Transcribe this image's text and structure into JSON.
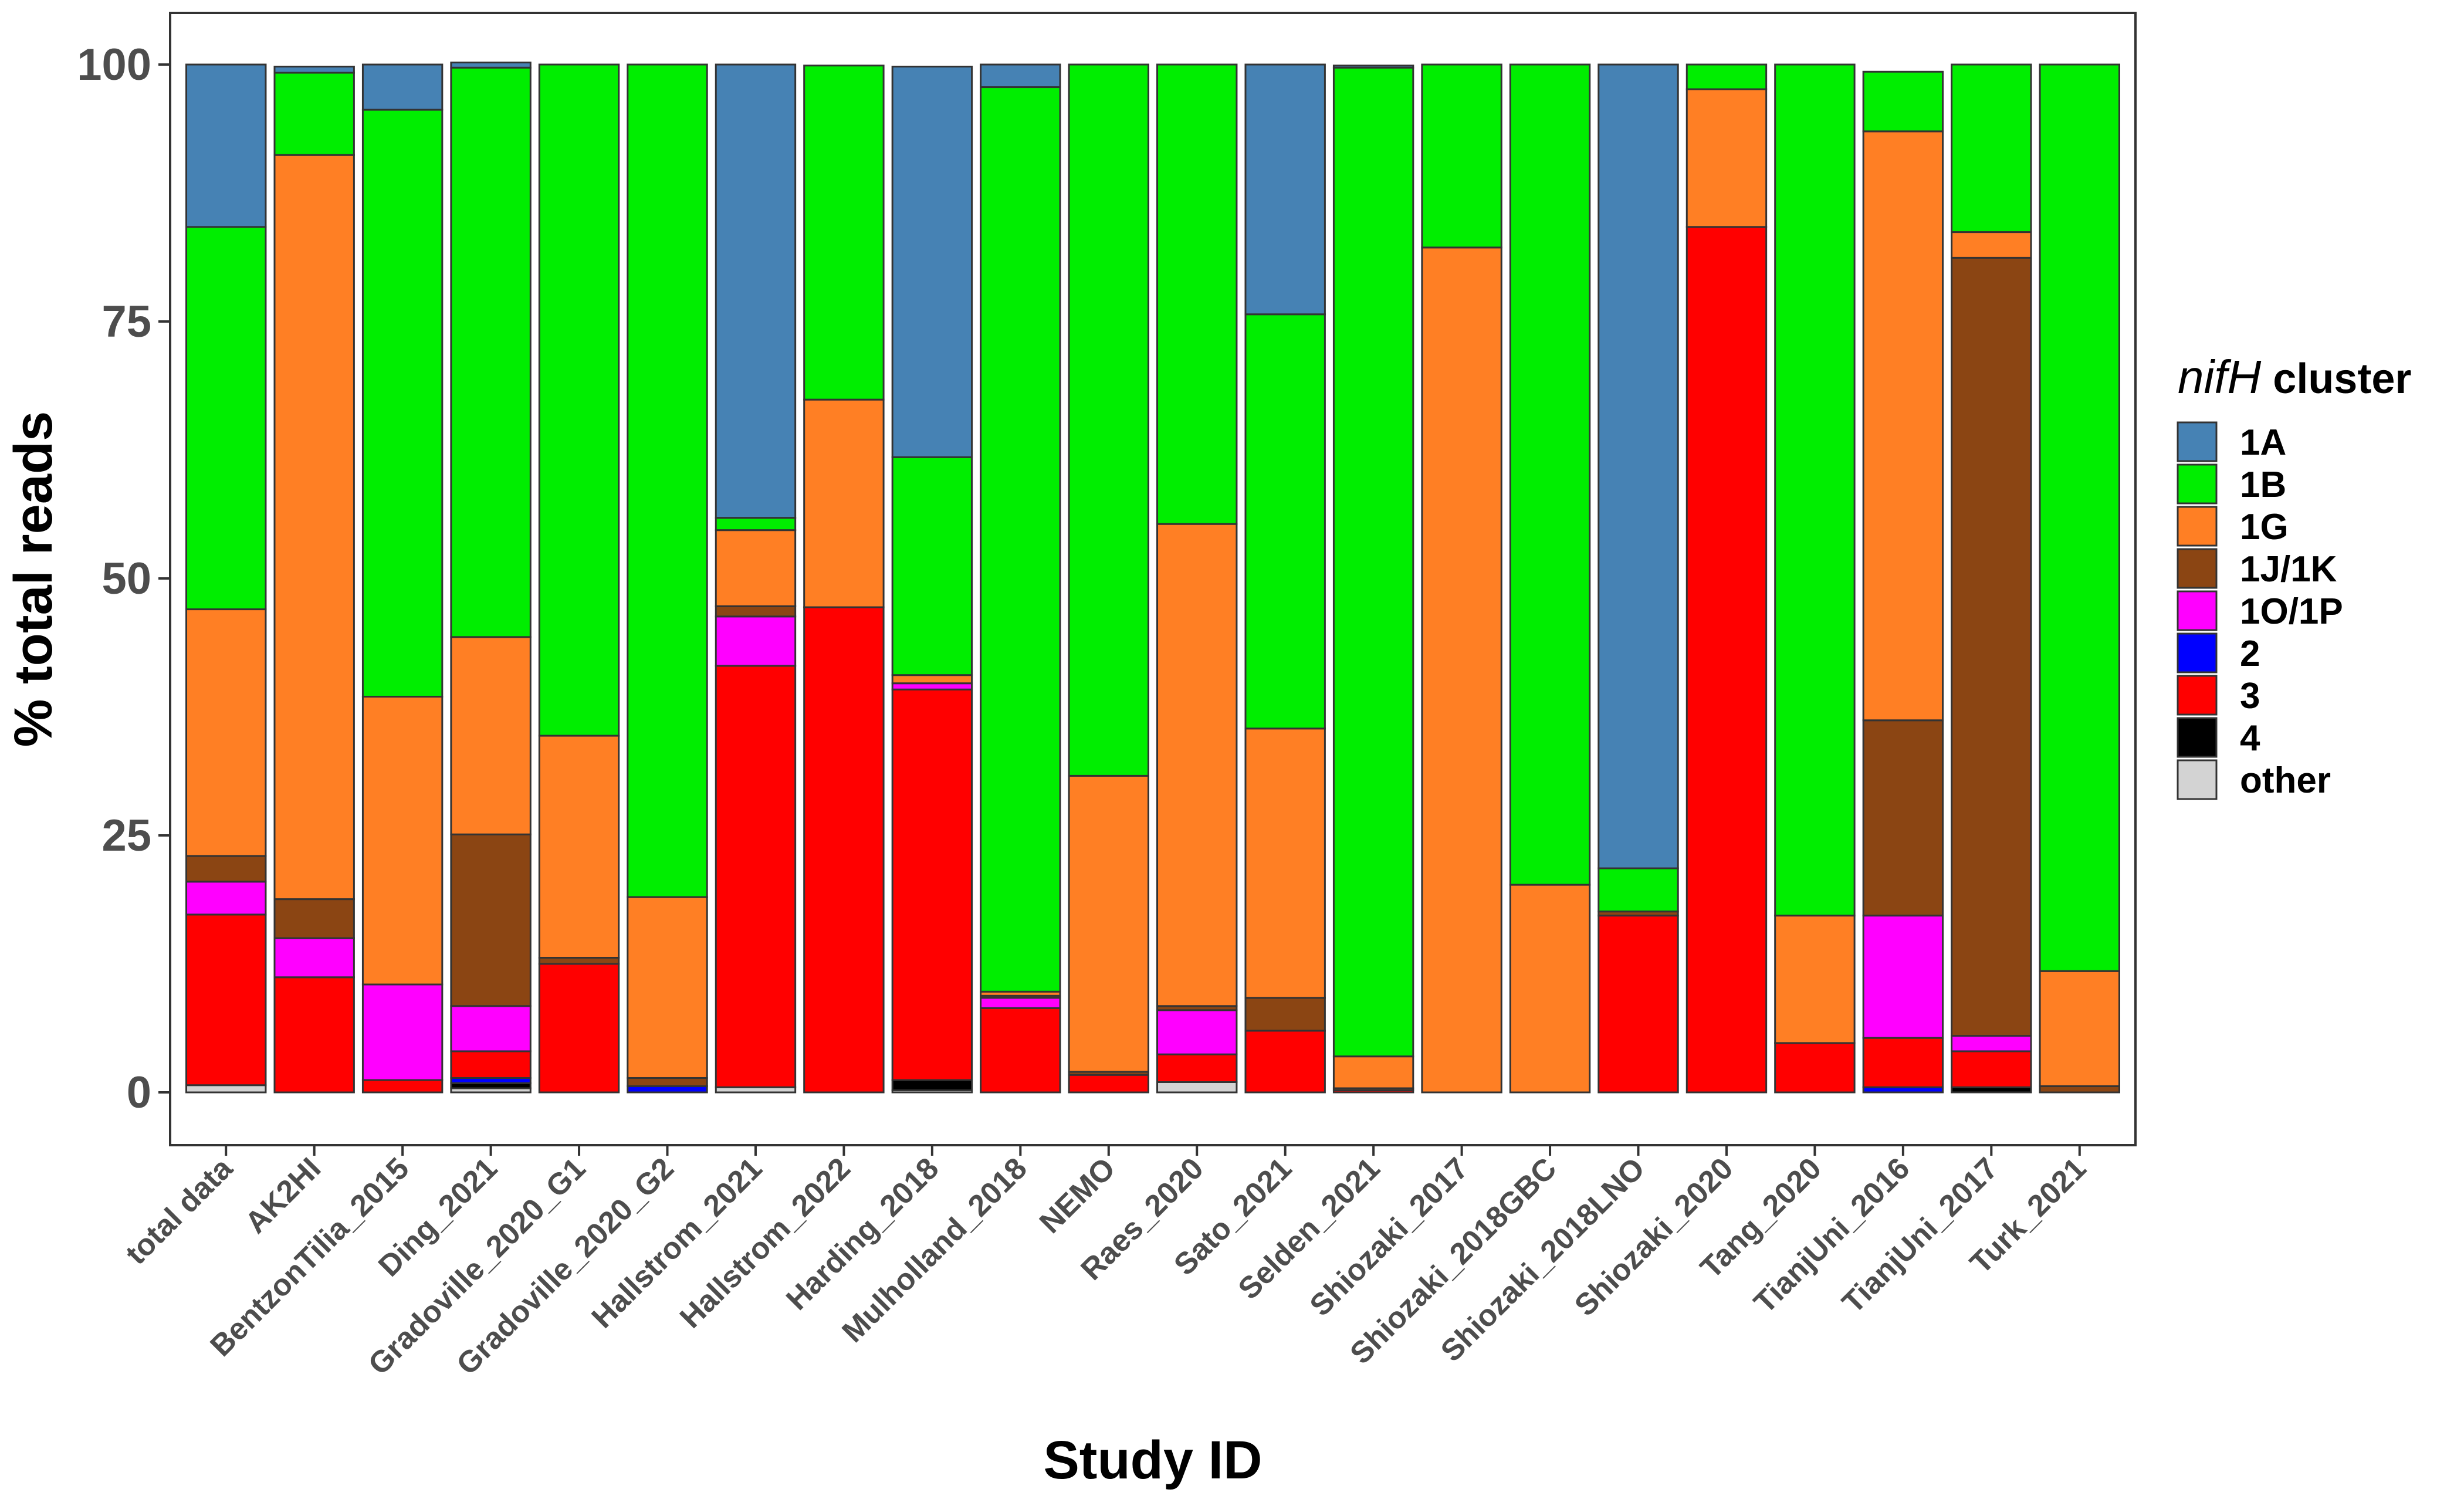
{
  "chart_data": {
    "type": "bar",
    "stacked": true,
    "title": "",
    "xlabel": "Study ID",
    "ylabel": "% total reads",
    "ylim": [
      0,
      100
    ],
    "yticks": [
      "0",
      "25",
      "50",
      "75",
      "100"
    ],
    "grid": false,
    "legend": {
      "position": "right",
      "title_italic": "nifH",
      "title_rest": " cluster"
    },
    "categories": [
      "total data",
      "AK2HI",
      "BentzonTilia_2015",
      "Ding_2021",
      "Gradoville_2020_G1",
      "Gradoville_2020_G2",
      "Hallstrom_2021",
      "Hallstrom_2022",
      "Harding_2018",
      "Mulholland_2018",
      "NEMO",
      "Raes_2020",
      "Sato_2021",
      "Selden_2021",
      "Shiozaki_2017",
      "Shiozaki_2018GBC",
      "Shiozaki_2018LNO",
      "Shiozaki_2020",
      "Tang_2020",
      "TianjUni_2016",
      "TianjUni_2017",
      "Turk_2021"
    ],
    "series": [
      {
        "name": "other",
        "color": "#d3d3d3",
        "values": [
          0.7,
          0,
          0,
          0.4,
          0,
          0,
          0.5,
          0,
          0.2,
          0,
          0,
          1.0,
          0,
          0,
          0,
          0,
          0,
          0,
          0,
          0,
          0,
          0
        ]
      },
      {
        "name": "4",
        "color": "#000000",
        "values": [
          0,
          0,
          0,
          0.5,
          0,
          0,
          0,
          0,
          1.0,
          0,
          0,
          0,
          0,
          0,
          0,
          0,
          0,
          0,
          0,
          0,
          0.5,
          0
        ]
      },
      {
        "name": "2",
        "color": "#0000ff",
        "values": [
          0,
          0,
          0,
          0.5,
          0,
          0.6,
          0,
          0,
          0,
          0,
          0,
          0,
          0,
          0,
          0,
          0,
          0,
          0,
          0,
          0.5,
          0,
          0
        ]
      },
      {
        "name": "3",
        "color": "#ff0000",
        "values": [
          16.6,
          11.2,
          1.2,
          2.6,
          12.5,
          0,
          41.0,
          47.2,
          38.0,
          8.2,
          1.7,
          2.7,
          6.0,
          0.2,
          0,
          0,
          17.2,
          84.2,
          4.8,
          4.8,
          3.5,
          0
        ]
      },
      {
        "name": "1O/1P",
        "color": "#ff00ff",
        "values": [
          3.2,
          3.8,
          9.3,
          4.4,
          0,
          0,
          4.8,
          0,
          0.6,
          1.0,
          0,
          4.3,
          0,
          0,
          0,
          0,
          0,
          0,
          0,
          11.9,
          1.5,
          0
        ]
      },
      {
        "name": "1J/1K",
        "color": "#8b4513",
        "values": [
          2.5,
          3.8,
          0,
          16.7,
          0.6,
          0.8,
          1.0,
          0,
          0,
          0.2,
          0.3,
          0.4,
          3.2,
          0.2,
          0,
          0,
          0.4,
          0,
          0,
          19.0,
          75.7,
          0.6
        ]
      },
      {
        "name": "1G",
        "color": "#ff7f24",
        "values": [
          24.0,
          72.4,
          28.0,
          19.2,
          21.6,
          17.6,
          7.4,
          20.2,
          0.8,
          0.4,
          28.8,
          46.9,
          26.2,
          3.1,
          82.2,
          20.2,
          0,
          13.4,
          12.4,
          57.3,
          2.5,
          11.2
        ]
      },
      {
        "name": "1B",
        "color": "#00ee00",
        "values": [
          37.2,
          8.0,
          57.1,
          55.4,
          65.3,
          81.0,
          1.2,
          32.5,
          21.2,
          88.0,
          69.2,
          44.7,
          40.3,
          96.2,
          17.8,
          79.8,
          4.2,
          2.4,
          82.8,
          5.8,
          16.3,
          88.2
        ]
      },
      {
        "name": "1A",
        "color": "#4682b4",
        "values": [
          15.8,
          0.6,
          4.4,
          0.5,
          0,
          0,
          44.1,
          0,
          38.0,
          2.2,
          0,
          0,
          24.3,
          0.2,
          0,
          0,
          78.2,
          0,
          0,
          0,
          0,
          0
        ]
      }
    ],
    "legend_order": [
      "1A",
      "1B",
      "1G",
      "1J/1K",
      "1O/1P",
      "2",
      "3",
      "4",
      "other"
    ]
  }
}
